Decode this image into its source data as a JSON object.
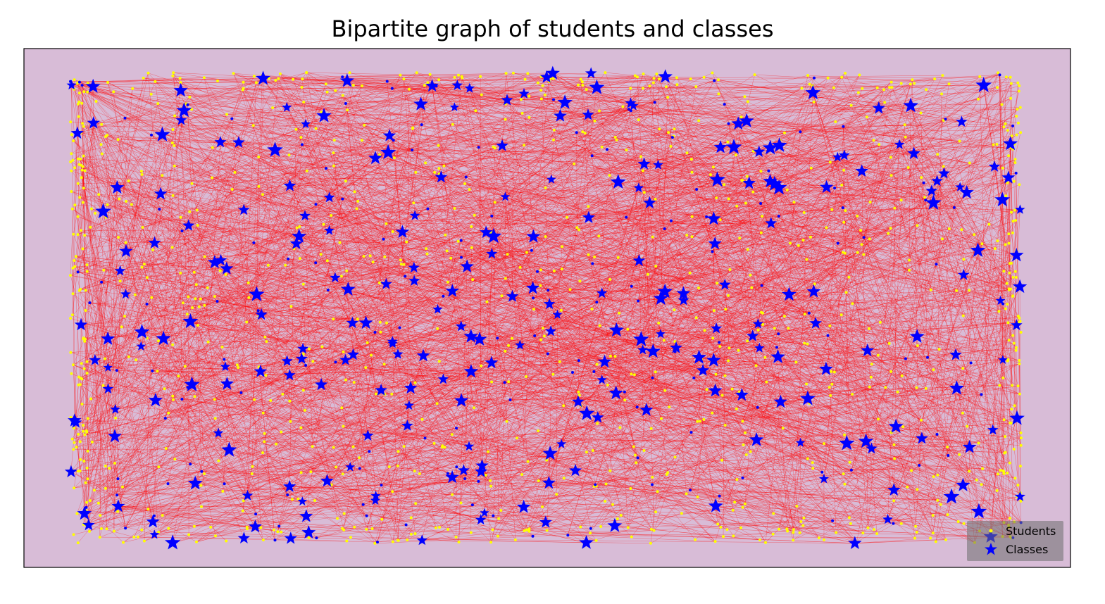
{
  "chart_data": {
    "type": "scatter",
    "subtype": "bipartite network graph",
    "title": "Bipartite graph of students and classes",
    "xlabel": "",
    "ylabel": "",
    "axes_ticks": false,
    "grid": false,
    "legend_position": "bottom-right",
    "colors": {
      "background": "#d8bcd7",
      "edges": "#ff0000",
      "students": "#ffff00",
      "classes": "#0000ff"
    },
    "series": [
      {
        "name": "Students",
        "marker": "dot",
        "color": "#ffff00"
      },
      {
        "name": "Classes",
        "marker": "star",
        "color": "#0000ff"
      }
    ]
  }
}
